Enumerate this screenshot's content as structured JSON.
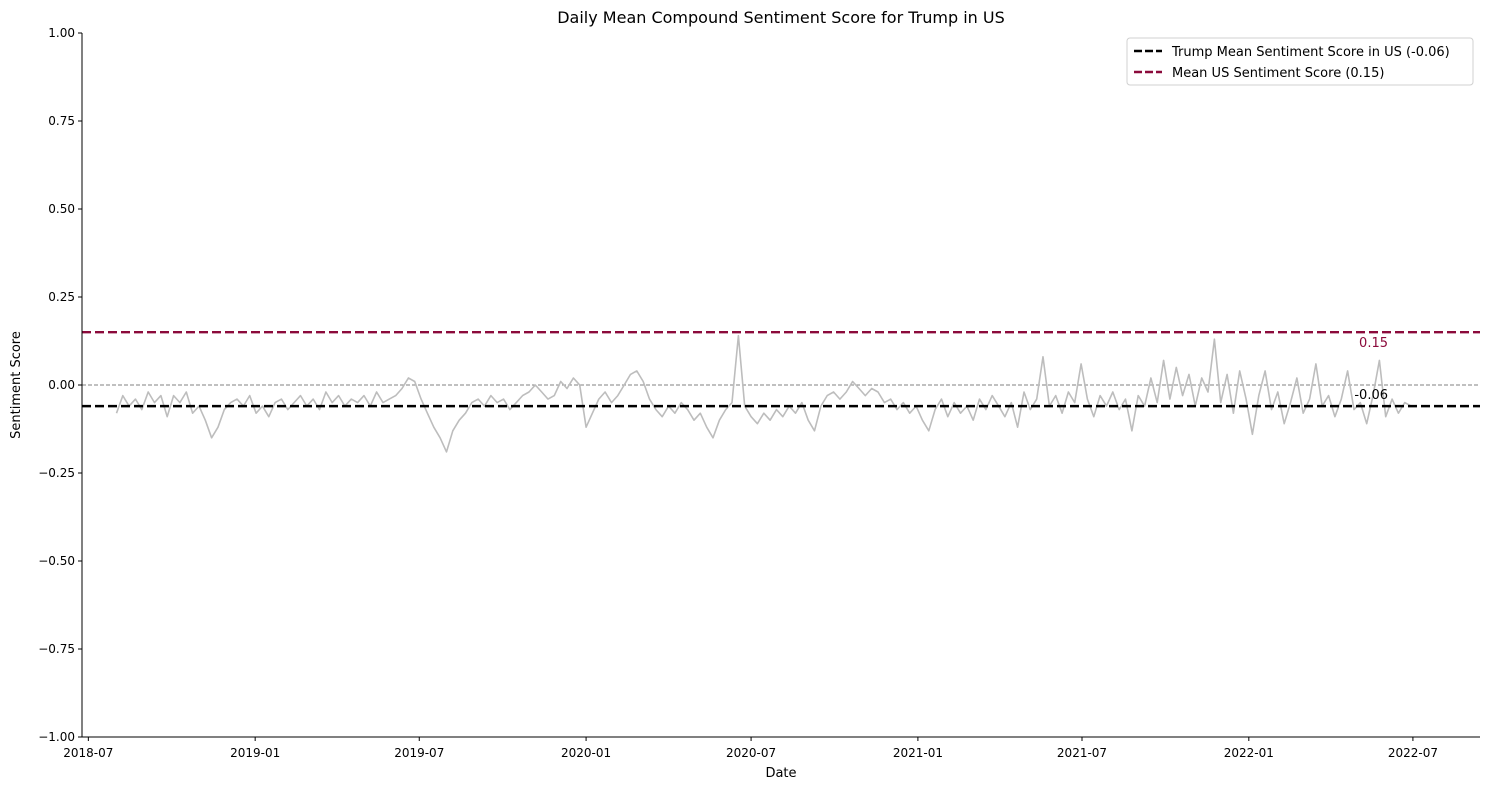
{
  "chart_data": {
    "type": "line",
    "title": "Daily Mean Compound Sentiment Score for Trump in US",
    "xlabel": "Date",
    "ylabel": "Sentiment Score",
    "xlim": [
      "2018-06-24",
      "2022-09-13"
    ],
    "ylim": [
      -1.0,
      1.0
    ],
    "x_ticks": [
      "2018-07",
      "2019-01",
      "2019-07",
      "2020-01",
      "2020-07",
      "2021-01",
      "2021-07",
      "2022-01",
      "2022-07"
    ],
    "y_ticks": [
      -1.0,
      -0.75,
      -0.5,
      -0.25,
      0.0,
      0.25,
      0.5,
      0.75,
      1.0
    ],
    "y_tick_labels": [
      "−1.00",
      "−0.75",
      "−0.50",
      "−0.25",
      "0.00",
      "0.25",
      "0.50",
      "0.75",
      "1.00"
    ],
    "grid": false,
    "legend_position": "top-right",
    "series": [
      {
        "color": "#bdbdbd",
        "points": [
          [
            "2018-08-01",
            -0.08
          ],
          [
            "2018-08-08",
            -0.03
          ],
          [
            "2018-08-15",
            -0.06
          ],
          [
            "2018-08-22",
            -0.04
          ],
          [
            "2018-08-29",
            -0.07
          ],
          [
            "2018-09-05",
            -0.02
          ],
          [
            "2018-09-12",
            -0.05
          ],
          [
            "2018-09-19",
            -0.03
          ],
          [
            "2018-09-26",
            -0.09
          ],
          [
            "2018-10-03",
            -0.03
          ],
          [
            "2018-10-10",
            -0.05
          ],
          [
            "2018-10-17",
            -0.02
          ],
          [
            "2018-10-24",
            -0.08
          ],
          [
            "2018-10-31",
            -0.06
          ],
          [
            "2018-11-07",
            -0.1
          ],
          [
            "2018-11-14",
            -0.15
          ],
          [
            "2018-11-21",
            -0.12
          ],
          [
            "2018-11-28",
            -0.07
          ],
          [
            "2018-12-05",
            -0.05
          ],
          [
            "2018-12-12",
            -0.04
          ],
          [
            "2018-12-19",
            -0.06
          ],
          [
            "2018-12-26",
            -0.03
          ],
          [
            "2019-01-02",
            -0.08
          ],
          [
            "2019-01-09",
            -0.06
          ],
          [
            "2019-01-16",
            -0.09
          ],
          [
            "2019-01-23",
            -0.05
          ],
          [
            "2019-01-30",
            -0.04
          ],
          [
            "2019-02-06",
            -0.07
          ],
          [
            "2019-02-13",
            -0.05
          ],
          [
            "2019-02-20",
            -0.03
          ],
          [
            "2019-02-27",
            -0.06
          ],
          [
            "2019-03-06",
            -0.04
          ],
          [
            "2019-03-13",
            -0.07
          ],
          [
            "2019-03-20",
            -0.02
          ],
          [
            "2019-03-27",
            -0.05
          ],
          [
            "2019-04-03",
            -0.03
          ],
          [
            "2019-04-10",
            -0.06
          ],
          [
            "2019-04-17",
            -0.04
          ],
          [
            "2019-04-24",
            -0.05
          ],
          [
            "2019-05-01",
            -0.03
          ],
          [
            "2019-05-08",
            -0.06
          ],
          [
            "2019-05-15",
            -0.02
          ],
          [
            "2019-05-22",
            -0.05
          ],
          [
            "2019-05-29",
            -0.04
          ],
          [
            "2019-06-05",
            -0.03
          ],
          [
            "2019-06-12",
            -0.01
          ],
          [
            "2019-06-19",
            0.02
          ],
          [
            "2019-06-26",
            0.01
          ],
          [
            "2019-07-03",
            -0.04
          ],
          [
            "2019-07-10",
            -0.08
          ],
          [
            "2019-07-17",
            -0.12
          ],
          [
            "2019-07-24",
            -0.15
          ],
          [
            "2019-07-31",
            -0.19
          ],
          [
            "2019-08-07",
            -0.13
          ],
          [
            "2019-08-14",
            -0.1
          ],
          [
            "2019-08-21",
            -0.08
          ],
          [
            "2019-08-28",
            -0.05
          ],
          [
            "2019-09-04",
            -0.04
          ],
          [
            "2019-09-11",
            -0.06
          ],
          [
            "2019-09-18",
            -0.03
          ],
          [
            "2019-09-25",
            -0.05
          ],
          [
            "2019-10-02",
            -0.04
          ],
          [
            "2019-10-09",
            -0.07
          ],
          [
            "2019-10-16",
            -0.05
          ],
          [
            "2019-10-23",
            -0.03
          ],
          [
            "2019-10-30",
            -0.02
          ],
          [
            "2019-11-06",
            0.0
          ],
          [
            "2019-11-13",
            -0.02
          ],
          [
            "2019-11-20",
            -0.04
          ],
          [
            "2019-11-27",
            -0.03
          ],
          [
            "2019-12-04",
            0.01
          ],
          [
            "2019-12-11",
            -0.01
          ],
          [
            "2019-12-18",
            0.02
          ],
          [
            "2019-12-25",
            0.0
          ],
          [
            "2020-01-01",
            -0.12
          ],
          [
            "2020-01-08",
            -0.08
          ],
          [
            "2020-01-15",
            -0.04
          ],
          [
            "2020-01-22",
            -0.02
          ],
          [
            "2020-01-29",
            -0.05
          ],
          [
            "2020-02-05",
            -0.03
          ],
          [
            "2020-02-12",
            0.0
          ],
          [
            "2020-02-19",
            0.03
          ],
          [
            "2020-02-26",
            0.04
          ],
          [
            "2020-03-04",
            0.01
          ],
          [
            "2020-03-11",
            -0.04
          ],
          [
            "2020-03-18",
            -0.07
          ],
          [
            "2020-03-25",
            -0.09
          ],
          [
            "2020-04-01",
            -0.06
          ],
          [
            "2020-04-08",
            -0.08
          ],
          [
            "2020-04-15",
            -0.05
          ],
          [
            "2020-04-22",
            -0.07
          ],
          [
            "2020-04-29",
            -0.1
          ],
          [
            "2020-05-06",
            -0.08
          ],
          [
            "2020-05-13",
            -0.12
          ],
          [
            "2020-05-20",
            -0.15
          ],
          [
            "2020-05-27",
            -0.1
          ],
          [
            "2020-06-03",
            -0.07
          ],
          [
            "2020-06-10",
            -0.05
          ],
          [
            "2020-06-17",
            0.14
          ],
          [
            "2020-06-24",
            -0.06
          ],
          [
            "2020-07-01",
            -0.09
          ],
          [
            "2020-07-08",
            -0.11
          ],
          [
            "2020-07-15",
            -0.08
          ],
          [
            "2020-07-22",
            -0.1
          ],
          [
            "2020-07-29",
            -0.07
          ],
          [
            "2020-08-05",
            -0.09
          ],
          [
            "2020-08-12",
            -0.06
          ],
          [
            "2020-08-19",
            -0.08
          ],
          [
            "2020-08-26",
            -0.05
          ],
          [
            "2020-09-02",
            -0.1
          ],
          [
            "2020-09-09",
            -0.13
          ],
          [
            "2020-09-16",
            -0.06
          ],
          [
            "2020-09-23",
            -0.03
          ],
          [
            "2020-09-30",
            -0.02
          ],
          [
            "2020-10-07",
            -0.04
          ],
          [
            "2020-10-14",
            -0.02
          ],
          [
            "2020-10-21",
            0.01
          ],
          [
            "2020-10-28",
            -0.01
          ],
          [
            "2020-11-04",
            -0.03
          ],
          [
            "2020-11-11",
            -0.01
          ],
          [
            "2020-11-18",
            -0.02
          ],
          [
            "2020-11-25",
            -0.05
          ],
          [
            "2020-12-02",
            -0.04
          ],
          [
            "2020-12-09",
            -0.07
          ],
          [
            "2020-12-16",
            -0.05
          ],
          [
            "2020-12-23",
            -0.08
          ],
          [
            "2020-12-30",
            -0.06
          ],
          [
            "2021-01-06",
            -0.1
          ],
          [
            "2021-01-13",
            -0.13
          ],
          [
            "2021-01-20",
            -0.07
          ],
          [
            "2021-01-27",
            -0.04
          ],
          [
            "2021-02-03",
            -0.09
          ],
          [
            "2021-02-10",
            -0.05
          ],
          [
            "2021-02-17",
            -0.08
          ],
          [
            "2021-02-24",
            -0.06
          ],
          [
            "2021-03-03",
            -0.1
          ],
          [
            "2021-03-10",
            -0.04
          ],
          [
            "2021-03-17",
            -0.07
          ],
          [
            "2021-03-24",
            -0.03
          ],
          [
            "2021-03-31",
            -0.06
          ],
          [
            "2021-04-07",
            -0.09
          ],
          [
            "2021-04-14",
            -0.05
          ],
          [
            "2021-04-21",
            -0.12
          ],
          [
            "2021-04-28",
            -0.02
          ],
          [
            "2021-05-05",
            -0.07
          ],
          [
            "2021-05-12",
            -0.04
          ],
          [
            "2021-05-19",
            0.08
          ],
          [
            "2021-05-26",
            -0.06
          ],
          [
            "2021-06-02",
            -0.03
          ],
          [
            "2021-06-09",
            -0.08
          ],
          [
            "2021-06-16",
            -0.02
          ],
          [
            "2021-06-23",
            -0.05
          ],
          [
            "2021-06-30",
            0.06
          ],
          [
            "2021-07-07",
            -0.04
          ],
          [
            "2021-07-14",
            -0.09
          ],
          [
            "2021-07-21",
            -0.03
          ],
          [
            "2021-07-28",
            -0.06
          ],
          [
            "2021-08-04",
            -0.02
          ],
          [
            "2021-08-11",
            -0.07
          ],
          [
            "2021-08-18",
            -0.04
          ],
          [
            "2021-08-25",
            -0.13
          ],
          [
            "2021-09-01",
            -0.03
          ],
          [
            "2021-09-08",
            -0.06
          ],
          [
            "2021-09-15",
            0.02
          ],
          [
            "2021-09-22",
            -0.05
          ],
          [
            "2021-09-29",
            0.07
          ],
          [
            "2021-10-06",
            -0.04
          ],
          [
            "2021-10-13",
            0.05
          ],
          [
            "2021-10-20",
            -0.03
          ],
          [
            "2021-10-27",
            0.03
          ],
          [
            "2021-11-03",
            -0.06
          ],
          [
            "2021-11-10",
            0.02
          ],
          [
            "2021-11-17",
            -0.02
          ],
          [
            "2021-11-24",
            0.13
          ],
          [
            "2021-12-01",
            -0.05
          ],
          [
            "2021-12-08",
            0.03
          ],
          [
            "2021-12-15",
            -0.08
          ],
          [
            "2021-12-22",
            0.04
          ],
          [
            "2021-12-29",
            -0.04
          ],
          [
            "2022-01-05",
            -0.14
          ],
          [
            "2022-01-12",
            -0.03
          ],
          [
            "2022-01-19",
            0.04
          ],
          [
            "2022-01-26",
            -0.07
          ],
          [
            "2022-02-02",
            -0.02
          ],
          [
            "2022-02-09",
            -0.11
          ],
          [
            "2022-02-16",
            -0.05
          ],
          [
            "2022-02-23",
            0.02
          ],
          [
            "2022-03-02",
            -0.08
          ],
          [
            "2022-03-09",
            -0.04
          ],
          [
            "2022-03-16",
            0.06
          ],
          [
            "2022-03-23",
            -0.06
          ],
          [
            "2022-03-30",
            -0.03
          ],
          [
            "2022-04-06",
            -0.09
          ],
          [
            "2022-04-13",
            -0.04
          ],
          [
            "2022-04-20",
            0.04
          ],
          [
            "2022-04-27",
            -0.07
          ],
          [
            "2022-05-04",
            -0.05
          ],
          [
            "2022-05-11",
            -0.11
          ],
          [
            "2022-05-18",
            -0.03
          ],
          [
            "2022-05-25",
            0.07
          ],
          [
            "2022-06-01",
            -0.09
          ],
          [
            "2022-06-08",
            -0.04
          ],
          [
            "2022-06-15",
            -0.08
          ],
          [
            "2022-06-22",
            -0.05
          ],
          [
            "2022-06-29",
            -0.06
          ]
        ]
      }
    ],
    "reference_lines": [
      {
        "name": "Trump Mean Sentiment Score in US (-0.06)",
        "y": -0.06,
        "label": "-0.06",
        "color": "#000000",
        "style": "dashed"
      },
      {
        "name": "Mean US Sentiment Score (0.15)",
        "y": 0.15,
        "label": "0.15",
        "color": "#8b0a3b",
        "style": "dashed"
      },
      {
        "y": 0.0,
        "color": "#808080",
        "style": "dashed-thin"
      }
    ]
  }
}
